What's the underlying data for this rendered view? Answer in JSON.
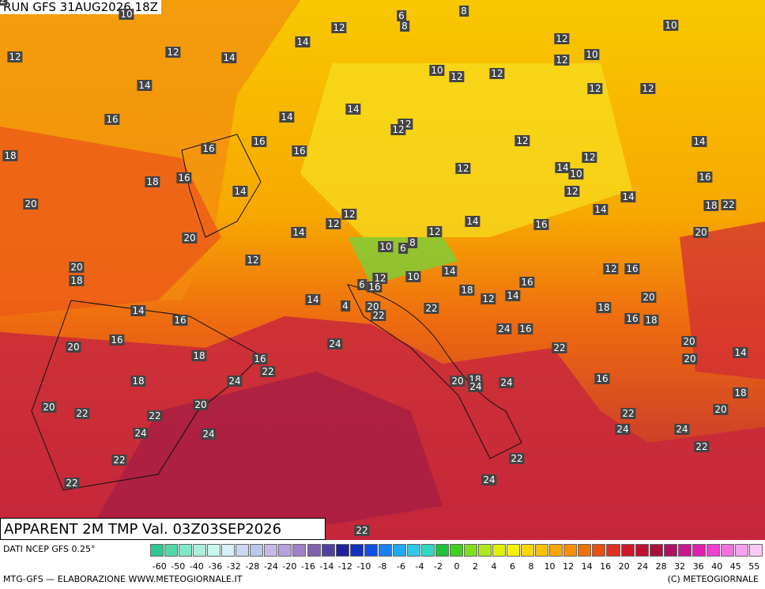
{
  "header": {
    "run": "RUN GFS 31AUG2026 18Z"
  },
  "map": {
    "title": "APPARENT 2M TMP Val. 03Z03SEP2026",
    "labels": [
      10,
      6,
      8,
      8,
      12,
      14,
      10,
      12,
      12,
      12,
      14,
      12,
      10,
      14,
      10,
      12,
      12,
      12,
      12,
      14,
      16,
      14,
      12,
      12,
      12,
      14,
      18,
      16,
      16,
      16,
      12,
      14,
      10,
      12,
      16,
      18,
      16,
      14,
      12,
      14,
      20,
      12,
      12,
      14,
      14,
      18,
      22,
      16,
      20,
      14,
      12,
      20,
      10,
      8,
      6,
      12,
      20,
      10,
      14,
      12,
      16,
      18,
      6,
      12,
      16,
      16,
      18,
      12,
      14,
      14,
      4,
      20,
      14,
      20,
      22,
      18,
      22,
      16,
      16,
      18,
      24,
      16,
      24,
      16,
      22,
      20,
      14,
      20,
      18,
      16,
      22,
      20,
      24,
      18,
      24,
      20,
      24,
      16,
      18,
      18,
      20,
      20,
      20,
      22,
      22,
      22,
      24,
      24,
      24,
      24,
      22,
      22,
      22,
      22,
      24,
      22,
      22
    ]
  },
  "footer": {
    "source": "DATI NCEP GFS 0.25°",
    "credit": "MTG-GFS — ELABORAZIONE WWW.METEOGIORNALE.IT",
    "copyright": "(C) METEOGIORNALE",
    "scale_labels": [
      -60,
      -50,
      -40,
      -36,
      -32,
      -28,
      -24,
      -20,
      -16,
      -14,
      -12,
      -10,
      -8,
      -6,
      -4,
      -2,
      0,
      2,
      4,
      6,
      8,
      10,
      12,
      14,
      16,
      20,
      24,
      28,
      32,
      36,
      40,
      45,
      55
    ]
  }
}
